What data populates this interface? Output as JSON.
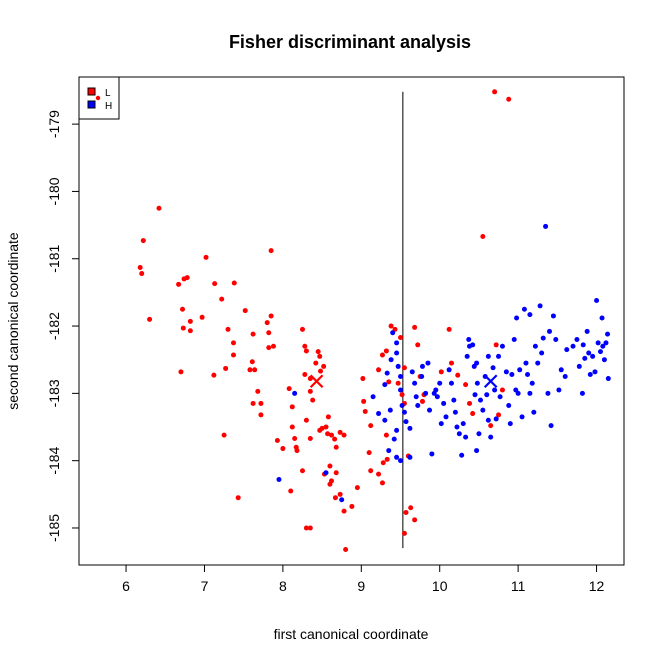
{
  "chart_data": {
    "type": "scatter",
    "title": "Fisher discriminant analysis",
    "xlabel": "first canonical coordinate",
    "ylabel": "second canonical coordinate",
    "xlim": [
      5.4,
      12.35
    ],
    "ylim": [
      -185.55,
      -178.3
    ],
    "xticks": [
      6,
      7,
      8,
      9,
      10,
      11,
      12
    ],
    "yticks": [
      -179,
      -180,
      -181,
      -182,
      -183,
      -184,
      -185
    ],
    "grid": false,
    "legend_position": "top-left",
    "decision_boundary": {
      "x": 9.53,
      "y_from": -178.52,
      "y_to": -185.3
    },
    "series": [
      {
        "name": "L",
        "color": "#ff0000",
        "centroid": [
          8.43,
          -182.82
        ],
        "points": [
          [
            6.42,
            -180.25
          ],
          [
            6.22,
            -180.73
          ],
          [
            6.18,
            -181.13
          ],
          [
            6.2,
            -181.22
          ],
          [
            6.3,
            -181.9
          ],
          [
            6.67,
            -181.38
          ],
          [
            6.74,
            -181.3
          ],
          [
            6.78,
            -181.28
          ],
          [
            6.72,
            -181.75
          ],
          [
            6.82,
            -181.93
          ],
          [
            6.73,
            -182.03
          ],
          [
            6.82,
            -182.07
          ],
          [
            6.7,
            -182.68
          ],
          [
            7.02,
            -180.98
          ],
          [
            7.13,
            -181.37
          ],
          [
            7.22,
            -181.6
          ],
          [
            6.97,
            -181.87
          ],
          [
            7.38,
            -181.36
          ],
          [
            7.3,
            -182.05
          ],
          [
            7.37,
            -182.25
          ],
          [
            7.12,
            -182.73
          ],
          [
            7.27,
            -182.63
          ],
          [
            7.37,
            -182.43
          ],
          [
            7.25,
            -183.62
          ],
          [
            7.43,
            -184.55
          ],
          [
            7.52,
            -181.77
          ],
          [
            7.62,
            -182.12
          ],
          [
            7.61,
            -182.53
          ],
          [
            7.64,
            -182.65
          ],
          [
            7.58,
            -182.65
          ],
          [
            7.68,
            -182.97
          ],
          [
            7.62,
            -183.15
          ],
          [
            7.72,
            -183.15
          ],
          [
            7.72,
            -183.32
          ],
          [
            7.85,
            -180.88
          ],
          [
            7.85,
            -181.85
          ],
          [
            7.8,
            -181.95
          ],
          [
            7.82,
            -182.1
          ],
          [
            7.82,
            -182.32
          ],
          [
            7.88,
            -182.3
          ],
          [
            7.93,
            -183.7
          ],
          [
            8.0,
            -183.82
          ],
          [
            8.08,
            -182.93
          ],
          [
            8.12,
            -183.2
          ],
          [
            8.12,
            -183.5
          ],
          [
            8.15,
            -183.67
          ],
          [
            8.17,
            -183.8
          ],
          [
            8.18,
            -183.85
          ],
          [
            8.25,
            -182.05
          ],
          [
            8.28,
            -182.3
          ],
          [
            8.3,
            -182.37
          ],
          [
            8.28,
            -182.72
          ],
          [
            8.35,
            -182.78
          ],
          [
            8.42,
            -182.55
          ],
          [
            8.45,
            -182.38
          ],
          [
            8.47,
            -182.45
          ],
          [
            8.48,
            -182.67
          ],
          [
            8.52,
            -182.6
          ],
          [
            8.35,
            -182.97
          ],
          [
            8.38,
            -183.1
          ],
          [
            8.3,
            -183.4
          ],
          [
            8.35,
            -183.67
          ],
          [
            8.47,
            -183.55
          ],
          [
            8.5,
            -183.52
          ],
          [
            8.55,
            -183.5
          ],
          [
            8.57,
            -183.6
          ],
          [
            8.62,
            -183.62
          ],
          [
            8.66,
            -183.68
          ],
          [
            8.73,
            -183.58
          ],
          [
            8.78,
            -183.62
          ],
          [
            8.58,
            -183.35
          ],
          [
            8.68,
            -183.8
          ],
          [
            8.6,
            -184.08
          ],
          [
            8.68,
            -184.18
          ],
          [
            8.73,
            -184.5
          ],
          [
            8.67,
            -184.55
          ],
          [
            8.53,
            -184.2
          ],
          [
            8.62,
            -184.3
          ],
          [
            8.6,
            -184.35
          ],
          [
            8.25,
            -184.15
          ],
          [
            8.1,
            -184.45
          ],
          [
            8.78,
            -184.75
          ],
          [
            8.88,
            -184.68
          ],
          [
            8.8,
            -185.32
          ],
          [
            8.3,
            -185.0
          ],
          [
            8.35,
            -185.0
          ],
          [
            8.95,
            -184.4
          ],
          [
            9.02,
            -182.78
          ],
          [
            9.03,
            -183.12
          ],
          [
            9.05,
            -183.27
          ],
          [
            9.12,
            -183.48
          ],
          [
            9.1,
            -183.88
          ],
          [
            9.12,
            -184.15
          ],
          [
            9.22,
            -184.2
          ],
          [
            9.27,
            -184.33
          ],
          [
            9.28,
            -184.03
          ],
          [
            9.33,
            -183.98
          ],
          [
            9.32,
            -183.62
          ],
          [
            9.22,
            -182.65
          ],
          [
            9.27,
            -182.43
          ],
          [
            9.32,
            -182.37
          ],
          [
            9.35,
            -182.83
          ],
          [
            9.38,
            -182.0
          ],
          [
            9.43,
            -182.05
          ],
          [
            9.5,
            -182.17
          ],
          [
            9.47,
            -182.85
          ],
          [
            9.52,
            -183.02
          ],
          [
            9.55,
            -183.15
          ],
          [
            9.55,
            -182.62
          ],
          [
            9.57,
            -184.77
          ],
          [
            9.55,
            -185.08
          ],
          [
            9.63,
            -184.7
          ],
          [
            9.68,
            -184.88
          ],
          [
            9.6,
            -183.93
          ],
          [
            9.68,
            -182.02
          ],
          [
            9.72,
            -182.28
          ],
          [
            9.78,
            -183.12
          ],
          [
            9.8,
            -183.02
          ],
          [
            9.75,
            -182.75
          ],
          [
            10.02,
            -182.68
          ],
          [
            10.12,
            -182.05
          ],
          [
            10.15,
            -182.55
          ],
          [
            10.23,
            -182.73
          ],
          [
            10.33,
            -182.87
          ],
          [
            10.38,
            -183.15
          ],
          [
            10.42,
            -183.3
          ],
          [
            10.55,
            -180.67
          ],
          [
            10.7,
            -178.52
          ],
          [
            10.88,
            -178.63
          ],
          [
            10.72,
            -182.28
          ],
          [
            10.8,
            -182.95
          ],
          [
            10.75,
            -183.32
          ],
          [
            10.65,
            -183.48
          ]
        ]
      },
      {
        "name": "H",
        "color": "#0000ff",
        "centroid": [
          10.65,
          -182.82
        ],
        "points": [
          [
            7.95,
            -184.28
          ],
          [
            8.15,
            -183.0
          ],
          [
            8.55,
            -184.18
          ],
          [
            8.75,
            -184.58
          ],
          [
            9.15,
            -183.05
          ],
          [
            9.22,
            -183.3
          ],
          [
            9.3,
            -183.4
          ],
          [
            9.3,
            -182.87
          ],
          [
            9.33,
            -182.7
          ],
          [
            9.37,
            -183.25
          ],
          [
            9.38,
            -182.5
          ],
          [
            9.4,
            -182.1
          ],
          [
            9.45,
            -182.25
          ],
          [
            9.45,
            -182.4
          ],
          [
            9.47,
            -182.6
          ],
          [
            9.5,
            -182.75
          ],
          [
            9.5,
            -182.95
          ],
          [
            9.52,
            -183.18
          ],
          [
            9.55,
            -183.28
          ],
          [
            9.57,
            -183.42
          ],
          [
            9.45,
            -183.55
          ],
          [
            9.42,
            -183.68
          ],
          [
            9.35,
            -183.85
          ],
          [
            9.45,
            -183.95
          ],
          [
            9.5,
            -184.0
          ],
          [
            9.62,
            -183.95
          ],
          [
            9.62,
            -183.52
          ],
          [
            9.65,
            -182.68
          ],
          [
            9.68,
            -182.85
          ],
          [
            9.7,
            -183.05
          ],
          [
            9.72,
            -183.18
          ],
          [
            9.77,
            -182.75
          ],
          [
            9.78,
            -182.6
          ],
          [
            9.82,
            -183.0
          ],
          [
            9.85,
            -182.55
          ],
          [
            9.87,
            -183.25
          ],
          [
            9.9,
            -183.9
          ],
          [
            9.93,
            -183.0
          ],
          [
            9.95,
            -182.95
          ],
          [
            9.97,
            -183.05
          ],
          [
            10.0,
            -182.85
          ],
          [
            10.02,
            -183.45
          ],
          [
            10.05,
            -183.15
          ],
          [
            10.08,
            -183.35
          ],
          [
            10.12,
            -182.65
          ],
          [
            10.15,
            -182.85
          ],
          [
            10.18,
            -183.1
          ],
          [
            10.2,
            -183.28
          ],
          [
            10.22,
            -183.5
          ],
          [
            10.25,
            -183.6
          ],
          [
            10.28,
            -183.92
          ],
          [
            10.3,
            -183.45
          ],
          [
            10.33,
            -183.65
          ],
          [
            10.35,
            -182.45
          ],
          [
            10.37,
            -182.2
          ],
          [
            10.38,
            -182.3
          ],
          [
            10.42,
            -182.28
          ],
          [
            10.44,
            -182.6
          ],
          [
            10.47,
            -182.55
          ],
          [
            10.48,
            -182.85
          ],
          [
            10.45,
            -183.02
          ],
          [
            10.47,
            -183.85
          ],
          [
            10.5,
            -183.6
          ],
          [
            10.52,
            -183.1
          ],
          [
            10.55,
            -183.25
          ],
          [
            10.58,
            -182.75
          ],
          [
            10.6,
            -183.02
          ],
          [
            10.62,
            -182.45
          ],
          [
            10.62,
            -183.4
          ],
          [
            10.65,
            -183.65
          ],
          [
            10.68,
            -182.62
          ],
          [
            10.7,
            -182.95
          ],
          [
            10.72,
            -183.38
          ],
          [
            10.75,
            -182.45
          ],
          [
            10.77,
            -183.05
          ],
          [
            10.8,
            -182.3
          ],
          [
            10.85,
            -182.68
          ],
          [
            10.88,
            -183.18
          ],
          [
            10.9,
            -183.45
          ],
          [
            10.92,
            -182.72
          ],
          [
            10.95,
            -182.2
          ],
          [
            10.97,
            -182.95
          ],
          [
            10.98,
            -181.88
          ],
          [
            11.0,
            -183.0
          ],
          [
            11.02,
            -182.65
          ],
          [
            11.05,
            -183.35
          ],
          [
            11.08,
            -181.75
          ],
          [
            11.1,
            -182.55
          ],
          [
            11.12,
            -182.72
          ],
          [
            11.15,
            -183.0
          ],
          [
            11.15,
            -181.83
          ],
          [
            11.18,
            -182.85
          ],
          [
            11.2,
            -183.28
          ],
          [
            11.22,
            -182.3
          ],
          [
            11.25,
            -182.55
          ],
          [
            11.28,
            -181.7
          ],
          [
            11.3,
            -182.4
          ],
          [
            11.32,
            -182.18
          ],
          [
            11.35,
            -180.52
          ],
          [
            11.38,
            -183.0
          ],
          [
            11.4,
            -182.08
          ],
          [
            11.42,
            -183.48
          ],
          [
            11.45,
            -181.85
          ],
          [
            11.48,
            -182.2
          ],
          [
            11.52,
            -182.95
          ],
          [
            11.62,
            -182.35
          ],
          [
            11.7,
            -182.3
          ],
          [
            11.75,
            -182.2
          ],
          [
            11.78,
            -182.6
          ],
          [
            11.82,
            -183.0
          ],
          [
            11.83,
            -182.28
          ],
          [
            11.85,
            -182.48
          ],
          [
            11.88,
            -182.08
          ],
          [
            11.9,
            -182.4
          ],
          [
            11.92,
            -182.72
          ],
          [
            11.95,
            -182.45
          ],
          [
            11.98,
            -182.68
          ],
          [
            12.0,
            -181.62
          ],
          [
            12.02,
            -182.25
          ],
          [
            12.05,
            -182.38
          ],
          [
            12.07,
            -181.88
          ],
          [
            12.08,
            -182.3
          ],
          [
            12.1,
            -182.5
          ],
          [
            12.12,
            -182.25
          ],
          [
            12.14,
            -182.12
          ],
          [
            12.15,
            -182.78
          ],
          [
            11.55,
            -182.65
          ],
          [
            11.6,
            -182.75
          ]
        ]
      }
    ]
  }
}
